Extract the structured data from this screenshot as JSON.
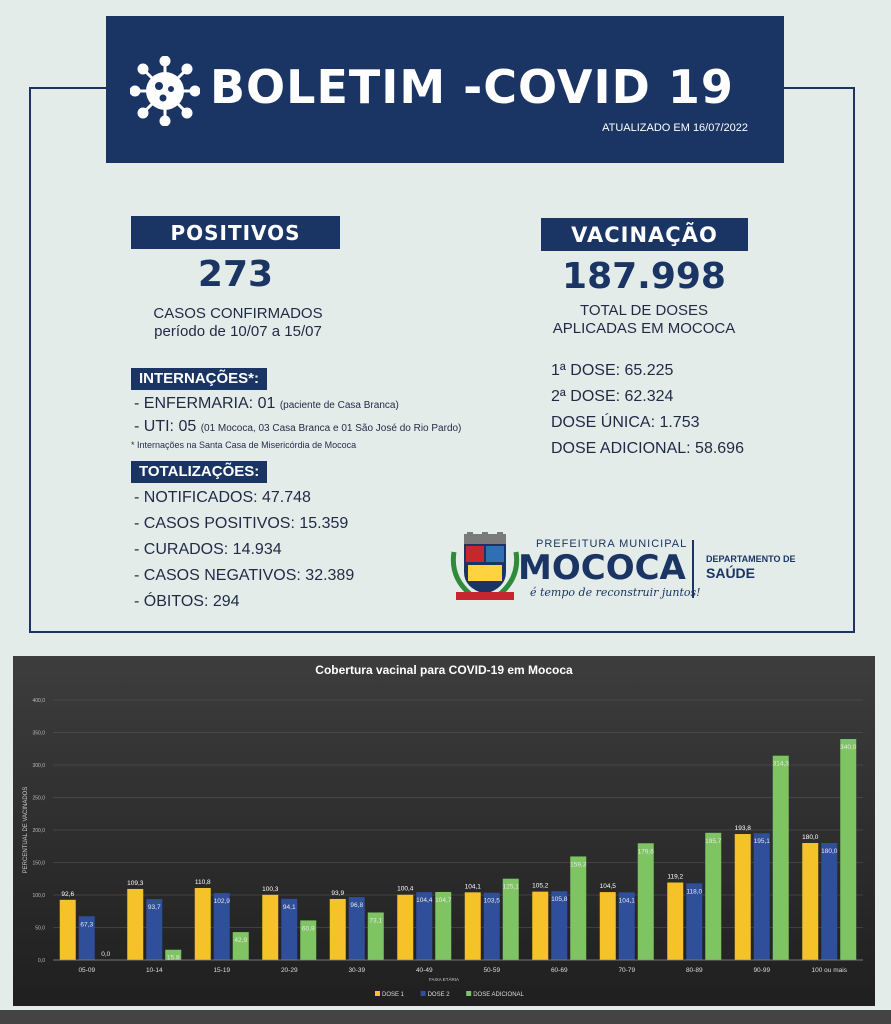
{
  "header": {
    "title": "BOLETIM -COVID 19",
    "updated": "ATUALIZADO EM 16/07/2022",
    "icon": "virus-icon"
  },
  "positivos": {
    "label": "POSITIVOS",
    "value": "273",
    "caption_1": "CASOS CONFIRMADOS",
    "caption_2": "período de 10/07 a 15/07"
  },
  "internacoes": {
    "label": "INTERNAÇÕES*:",
    "enfermaria": "- ENFERMARIA: 01",
    "enfermaria_note": "(paciente de Casa Branca)",
    "uti": "- UTI: 05",
    "uti_note": "(01 Mococa, 03 Casa Branca e 01 São José do Rio Pardo)",
    "footnote": "* Internações na Santa Casa de Misericórdia de Mococa"
  },
  "totalizacoes": {
    "label": "TOTALIZAÇÕES:",
    "items": [
      "- NOTIFICADOS: 47.748",
      "- CASOS POSITIVOS: 15.359",
      "- CURADOS: 14.934",
      "- CASOS NEGATIVOS: 32.389",
      "- ÓBITOS: 294"
    ]
  },
  "vacinacao": {
    "label": "VACINAÇÃO",
    "value": "187.998",
    "caption_1": "TOTAL DE DOSES",
    "caption_2": "APLICADAS EM MOCOCA",
    "items": [
      "1ª DOSE: 65.225",
      "2ª DOSE: 62.324",
      "DOSE ÚNICA: 1.753",
      "DOSE ADICIONAL: 58.696"
    ]
  },
  "logo": {
    "top": "PREFEITURA MUNICIPAL",
    "name": "MOCOCA",
    "slogan": "é tempo de reconstruir juntos!",
    "dept_1": "DEPARTAMENTO DE",
    "dept_2": "SAÚDE"
  },
  "colors": {
    "navy": "#1a3564",
    "dose1": "#f5c22a",
    "dose2": "#2f4f9a",
    "dose_adicional": "#7ec463"
  },
  "chart_data": {
    "type": "bar",
    "title": "Cobertura vacinal para COVID-19 em Mococa",
    "xlabel": "FAIXA ETÁRIA",
    "ylabel": "PERCENTUAL DE VACINADOS",
    "ylim": [
      0,
      400
    ],
    "yticks": [
      "0,0",
      "50,0",
      "100,0",
      "150,0",
      "200,0",
      "250,0",
      "300,0",
      "350,0",
      "400,0"
    ],
    "grid": true,
    "legend": "bottom",
    "categories": [
      "05-09",
      "10-14",
      "15-19",
      "20-29",
      "30-39",
      "40-49",
      "50-59",
      "60-69",
      "70-79",
      "80-89",
      "90-99",
      "100 ou mais"
    ],
    "series": [
      {
        "name": "DOSE 1",
        "values": [
          92.6,
          109.3,
          110.8,
          100.3,
          93.9,
          100.4,
          104.1,
          105.2,
          104.5,
          119.2,
          193.8,
          180.0
        ],
        "labels": [
          "92,6",
          "109,3",
          "110,8",
          "100,3",
          "93,9",
          "100,4",
          "104,1",
          "105,2",
          "104,5",
          "119,2",
          "193,8",
          "180,0"
        ]
      },
      {
        "name": "DOSE 2",
        "values": [
          67.3,
          93.7,
          102.9,
          94.1,
          96.8,
          104.4,
          103.5,
          105.8,
          104.1,
          118.0,
          195.1,
          180.0
        ],
        "labels": [
          "67,3",
          "93,7",
          "102,9",
          "94,1",
          "96,8",
          "104,4",
          "103,5",
          "105,8",
          "104,1",
          "118,0",
          "195,1",
          "180,0"
        ]
      },
      {
        "name": "DOSE ADICIONAL",
        "values": [
          0.0,
          15.8,
          42.9,
          60.9,
          73.1,
          104.7,
          125.1,
          159.3,
          179.6,
          195.7,
          314.3,
          340.0
        ],
        "labels": [
          "0,0",
          "15,8",
          "42,9",
          "60,9",
          "73,1",
          "104,7",
          "125,1",
          "159,3",
          "179,6",
          "195,7",
          "314,3",
          "340,0"
        ]
      }
    ]
  }
}
